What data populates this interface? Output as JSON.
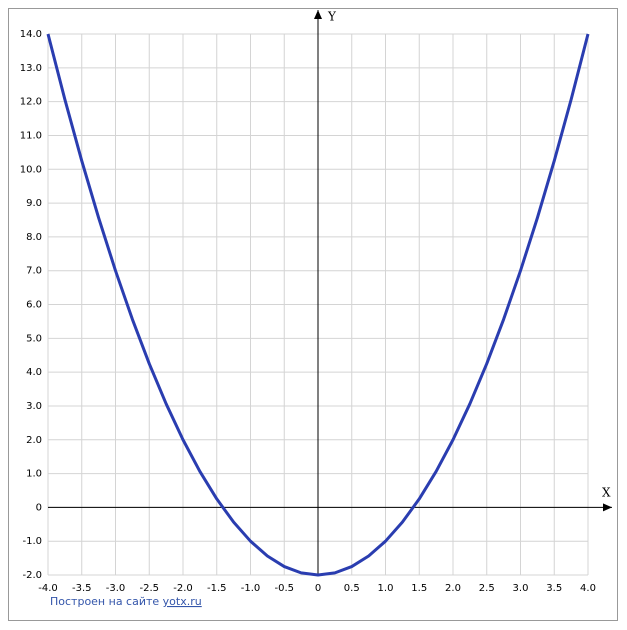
{
  "chart_data": {
    "type": "line",
    "x_label": "X",
    "y_label": "Y",
    "x": [
      -4,
      -3.75,
      -3.5,
      -3.25,
      -3,
      -2.75,
      -2.5,
      -2.25,
      -2,
      -1.75,
      -1.5,
      -1.25,
      -1,
      -0.75,
      -0.5,
      -0.25,
      0,
      0.25,
      0.5,
      0.75,
      1,
      1.25,
      1.5,
      1.75,
      2,
      2.25,
      2.5,
      2.75,
      3,
      3.25,
      3.5,
      3.75,
      4
    ],
    "series": [
      {
        "color": "#2a3db0",
        "values": [
          14,
          12.0625,
          10.25,
          8.5625,
          7,
          5.5625,
          4.25,
          3.0625,
          2,
          1.0625,
          0.25,
          -0.4375,
          -1,
          -1.4375,
          -1.75,
          -1.9375,
          -2,
          -1.9375,
          -1.75,
          -1.4375,
          -1,
          -0.4375,
          0.25,
          1.0625,
          2,
          3.0625,
          4.25,
          5.5625,
          7,
          8.5625,
          10.25,
          12.0625,
          14
        ]
      }
    ],
    "xlim": [
      -4,
      4
    ],
    "ylim": [
      -2,
      14
    ],
    "xticks": [
      {
        "value": -4,
        "label": "-4.0"
      },
      -3.5,
      {
        "value": -3,
        "label": "-3.0"
      },
      -2.5,
      {
        "value": -2,
        "label": "-2.0"
      },
      -1.5,
      {
        "value": -1,
        "label": "-1.0"
      },
      -0.5,
      0,
      0.5,
      {
        "value": 1,
        "label": "1.0"
      },
      1.5,
      {
        "value": 2,
        "label": "2.0"
      },
      2.5,
      {
        "value": 3,
        "label": "3.0"
      },
      3.5,
      {
        "value": 4,
        "label": "4.0"
      }
    ],
    "yticks": [
      {
        "value": -2,
        "label": "-2.0"
      },
      {
        "value": -1,
        "label": "-1.0"
      },
      0,
      {
        "value": 1,
        "label": "1.0"
      },
      {
        "value": 2,
        "label": "2.0"
      },
      {
        "value": 3,
        "label": "3.0"
      },
      {
        "value": 4,
        "label": "4.0"
      },
      {
        "value": 5,
        "label": "5.0"
      },
      {
        "value": 6,
        "label": "6.0"
      },
      {
        "value": 7,
        "label": "7.0"
      },
      {
        "value": 8,
        "label": "8.0"
      },
      {
        "value": 9,
        "label": "9.0"
      },
      {
        "value": 10,
        "label": "10.0"
      },
      {
        "value": 11,
        "label": "11.0"
      },
      {
        "value": 12,
        "label": "12.0"
      },
      {
        "value": 13,
        "label": "13.0"
      },
      {
        "value": 14,
        "label": "14.0"
      }
    ],
    "grid": true
  },
  "footer": {
    "text": "Построен на сайте",
    "link": "yotx.ru"
  }
}
